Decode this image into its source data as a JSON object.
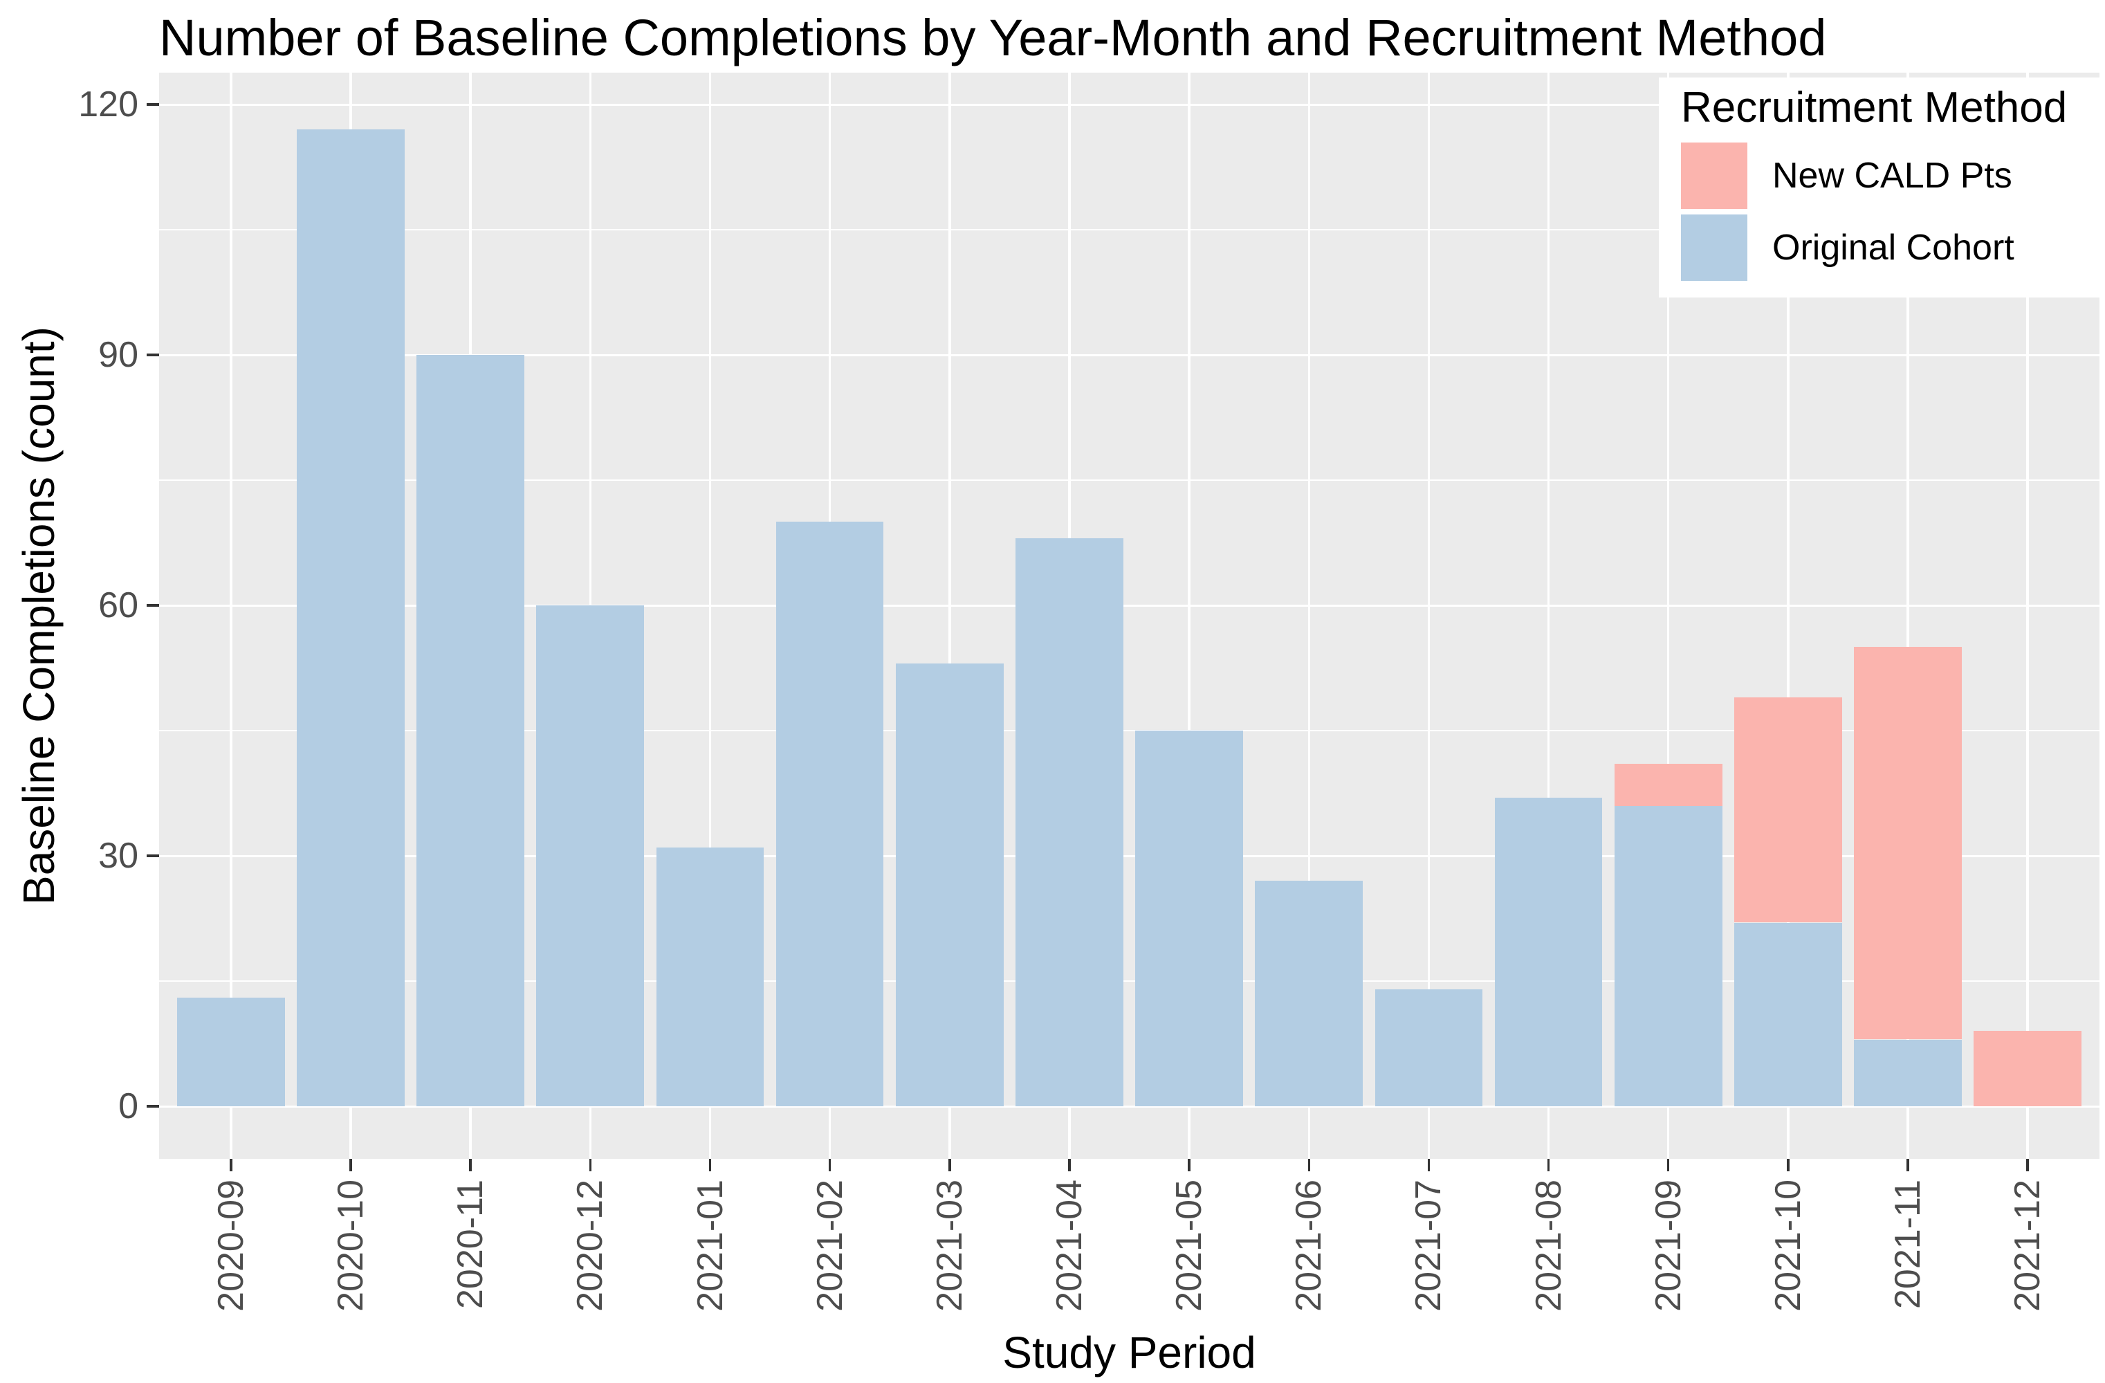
{
  "chart_data": {
    "type": "bar",
    "stacked": true,
    "title": "Number of Baseline Completions by Year-Month and Recruitment Method",
    "xlabel": "Study Period",
    "ylabel": "Baseline Completions (count)",
    "categories": [
      "2020-09",
      "2020-10",
      "2020-11",
      "2020-12",
      "2021-01",
      "2021-02",
      "2021-03",
      "2021-04",
      "2021-05",
      "2021-06",
      "2021-07",
      "2021-08",
      "2021-09",
      "2021-10",
      "2021-11",
      "2021-12"
    ],
    "series": [
      {
        "name": "Original Cohort",
        "color": "#B3CDE3",
        "stack_order": "bottom",
        "values": [
          13,
          117,
          90,
          60,
          31,
          70,
          53,
          68,
          45,
          27,
          14,
          37,
          36,
          22,
          8,
          0
        ]
      },
      {
        "name": "New CALD Pts",
        "color": "#FBB4AE",
        "stack_order": "top",
        "values": [
          0,
          0,
          0,
          0,
          0,
          0,
          0,
          0,
          0,
          0,
          0,
          0,
          5,
          27,
          47,
          9
        ]
      }
    ],
    "totals": [
      13,
      117,
      90,
      60,
      31,
      70,
      53,
      68,
      45,
      27,
      14,
      37,
      41,
      49,
      55,
      9
    ],
    "y_ticks": [
      0,
      30,
      60,
      90,
      120
    ],
    "y_minor_gridlines": [
      15,
      45,
      75,
      105
    ],
    "ylim": [
      0,
      120
    ],
    "grid": true,
    "legend": {
      "title": "Recruitment Method",
      "position": "top-right-inside",
      "entries": [
        {
          "label": "New CALD Pts",
          "color": "#FBB4AE"
        },
        {
          "label": "Original Cohort",
          "color": "#B3CDE3"
        }
      ]
    }
  },
  "style": {
    "background": "#FFFFFF",
    "panel_bg": "#EBEBEB",
    "grid_color": "#FFFFFF",
    "axis_text_color": "#4D4D4D",
    "title_color": "#000000",
    "tick_color": "#333333",
    "bar_pink": "#FBB4AE",
    "bar_blue": "#B3CDE3"
  }
}
